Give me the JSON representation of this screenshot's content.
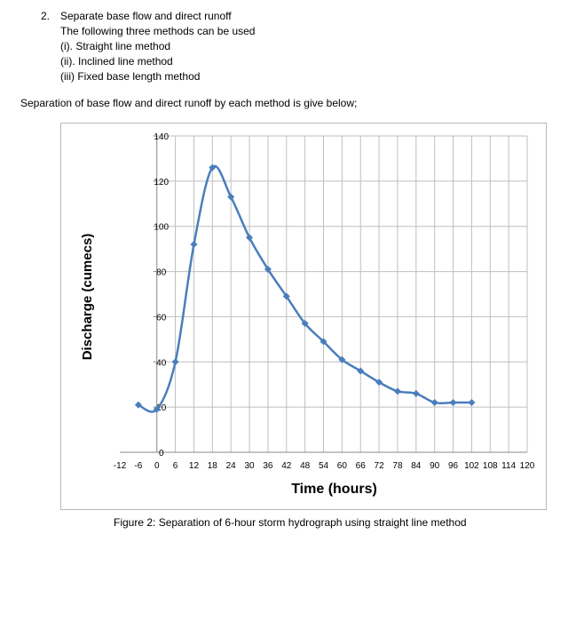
{
  "intro": {
    "number": "2.",
    "heading": "Separate base flow and direct runoff",
    "subheading": "The following three methods can be used",
    "methods": [
      "(i). Straight line method",
      "(ii). Inclined line method",
      "(iii) Fixed base length method"
    ]
  },
  "separation_text": "Separation of base flow and direct runoff by each method is give below;",
  "caption": "Figure 2: Separation of 6-hour storm hydrograph using straight line method",
  "colors": {
    "line": "#4a7ebb",
    "grid": "#bfbfbf",
    "axis": "#888888"
  },
  "chart_data": {
    "type": "line",
    "xlabel": "Time (hours)",
    "ylabel": "Discharge (cumecs)",
    "xlim": [
      -12,
      120
    ],
    "ylim": [
      0,
      140
    ],
    "x_ticks": [
      -12,
      -6,
      0,
      6,
      12,
      18,
      24,
      30,
      36,
      42,
      48,
      54,
      60,
      66,
      72,
      78,
      84,
      90,
      96,
      102,
      108,
      114,
      120
    ],
    "y_ticks": [
      0,
      20,
      40,
      60,
      80,
      100,
      120,
      140
    ],
    "grid": true,
    "legend": "none",
    "series": [
      {
        "x": [
          -6,
          0,
          6,
          12,
          18,
          24,
          30,
          36,
          42,
          48,
          54,
          60,
          66,
          72,
          78,
          84,
          90,
          96,
          102
        ],
        "y": [
          21,
          19,
          40,
          92,
          126,
          113,
          95,
          81,
          69,
          57,
          49,
          41,
          36,
          31,
          27,
          26,
          22,
          22,
          22
        ]
      }
    ]
  }
}
